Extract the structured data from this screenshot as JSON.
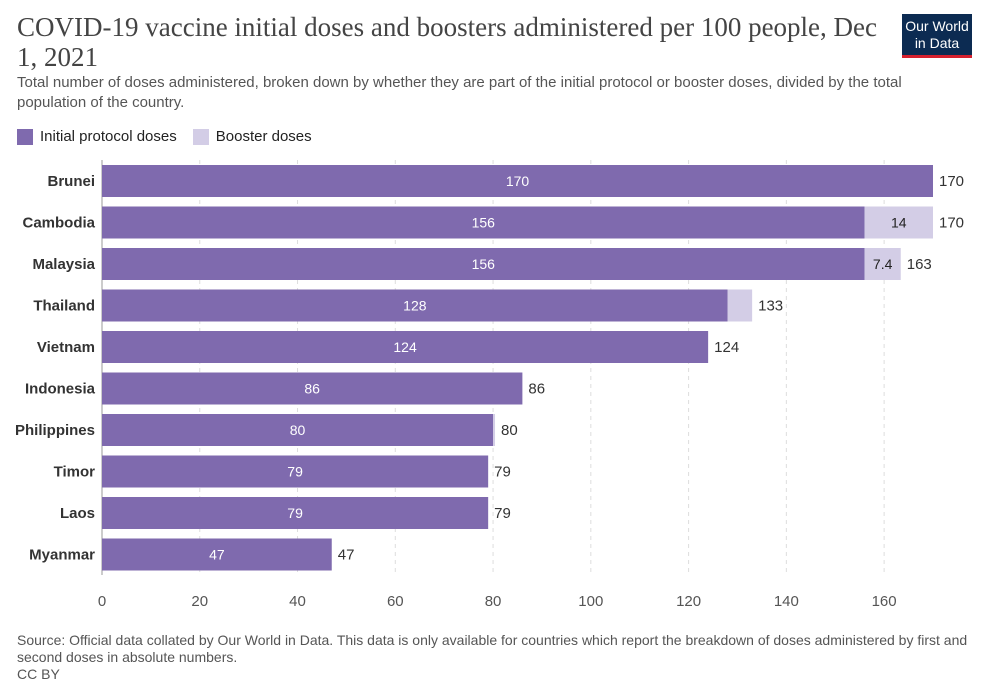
{
  "title": "COVID-19 vaccine initial doses and boosters administered per 100 people, Dec 1, 2021",
  "subtitle": "Total number of doses administered, broken down by whether they are part of the initial protocol or booster doses, divided by the total population of the country.",
  "logo": {
    "line1": "Our World",
    "line2": "in Data"
  },
  "source": "Source: Official data collated by Our World in Data. This data is only available for countries which report the breakdown of doses administered by first and second doses in absolute numbers.",
  "license": "CC BY",
  "colors": {
    "initial": "#7f6aae",
    "booster": "#d3cde6",
    "grid": "#dddddd"
  },
  "chart_data": {
    "type": "bar",
    "orientation": "horizontal",
    "stacked": true,
    "categories": [
      "Brunei",
      "Cambodia",
      "Malaysia",
      "Thailand",
      "Vietnam",
      "Indonesia",
      "Philippines",
      "Timor",
      "Laos",
      "Myanmar"
    ],
    "series": [
      {
        "name": "Initial protocol doses",
        "values": [
          170,
          156,
          156,
          128,
          124,
          86,
          80,
          79,
          79,
          47
        ],
        "labels": [
          "170",
          "156",
          "156",
          "128",
          "124",
          "86",
          "80",
          "79",
          "79",
          "47"
        ]
      },
      {
        "name": "Booster doses",
        "values": [
          0,
          14,
          7.4,
          5,
          0,
          0,
          0.4,
          0,
          0,
          0
        ],
        "labels": [
          "",
          "14",
          "7.4",
          "",
          "",
          "",
          "",
          "",
          "",
          ""
        ]
      }
    ],
    "totals": [
      "170",
      "170",
      "163",
      "133",
      "124",
      "86",
      "80",
      "79",
      "79",
      "47"
    ],
    "xlim": [
      0,
      170
    ],
    "xticks": [
      0,
      20,
      40,
      60,
      80,
      100,
      120,
      140,
      160
    ],
    "grid": true,
    "legend": "top-left"
  }
}
